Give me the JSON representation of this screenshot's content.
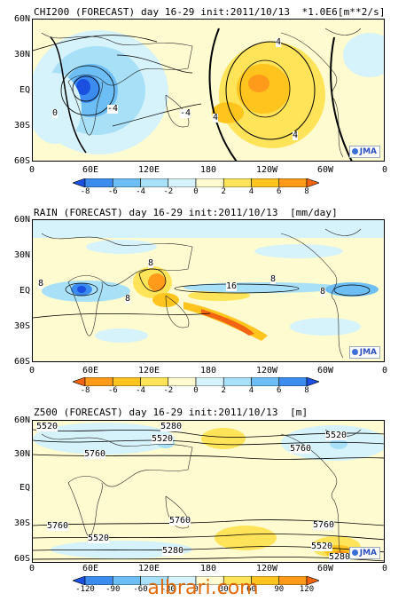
{
  "chart_data": [
    {
      "type": "heatmap",
      "title": "CHI200 (FORECAST) day 16-29 init:2011/10/13  *1.0E6[m**2/s]",
      "map_region": "global",
      "y_tick_labels": [
        "60N",
        "30N",
        "EQ",
        "30S",
        "60S"
      ],
      "x_tick_labels": [
        "0",
        "60E",
        "120E",
        "180",
        "120W",
        "60W",
        "0"
      ],
      "colorbar": {
        "tick_labels": [
          "-8",
          "-6",
          "-4",
          "-2",
          "0",
          "2",
          "4",
          "6",
          "8"
        ],
        "colors": [
          "#1a4fe0",
          "#3c8cf0",
          "#6cbef5",
          "#a8e0f8",
          "#d6f2fa",
          "#fffbd0",
          "#ffe45a",
          "#ffc51e",
          "#ff9a1a",
          "#f26412"
        ]
      },
      "contour_labels": [
        "-4",
        "0",
        "-4",
        "4",
        "4",
        "4"
      ],
      "logo": "JMA"
    },
    {
      "type": "heatmap",
      "title": "RAIN (FORECAST) day 16-29 init:2011/10/13  [mm/day]",
      "map_region": "global",
      "y_tick_labels": [
        "60N",
        "30N",
        "EQ",
        "30S",
        "60S"
      ],
      "x_tick_labels": [
        "0",
        "60E",
        "120E",
        "180",
        "120W",
        "60W",
        "0"
      ],
      "colorbar": {
        "tick_labels": [
          "-8",
          "-6",
          "-4",
          "-2",
          "0",
          "2",
          "4",
          "6",
          "8"
        ],
        "colors": [
          "#f26412",
          "#ff9a1a",
          "#ffc51e",
          "#ffe45a",
          "#fffbd0",
          "#d6f2fa",
          "#a8e0f8",
          "#6cbef5",
          "#3c8cf0",
          "#1a4fe0"
        ]
      },
      "contour_labels": [
        "8",
        "8",
        "8",
        "16",
        "8",
        "8"
      ],
      "logo": "JMA"
    },
    {
      "type": "heatmap",
      "title": "Z500 (FORECAST) day 16-29 init:2011/10/13  [m]",
      "map_region": "global",
      "y_tick_labels": [
        "60N",
        "30N",
        "EQ",
        "30S",
        "60S"
      ],
      "x_tick_labels": [
        "0",
        "60E",
        "120E",
        "180",
        "120W",
        "60W",
        "0"
      ],
      "colorbar": {
        "tick_labels": [
          "-120",
          "-90",
          "-60",
          "-30",
          "0",
          "30",
          "60",
          "90",
          "120"
        ],
        "colors": [
          "#1a4fe0",
          "#3c8cf0",
          "#6cbef5",
          "#a8e0f8",
          "#d6f2fa",
          "#fffbd0",
          "#ffe45a",
          "#ffc51e",
          "#ff9a1a",
          "#f26412"
        ]
      },
      "contour_labels": [
        "5520",
        "5280",
        "5520",
        "5520",
        "5760",
        "5760",
        "5760",
        "5520",
        "5760",
        "5280",
        "5520",
        "5760",
        "5280"
      ],
      "logo": "JMA"
    }
  ],
  "watermark": "albrari.com"
}
